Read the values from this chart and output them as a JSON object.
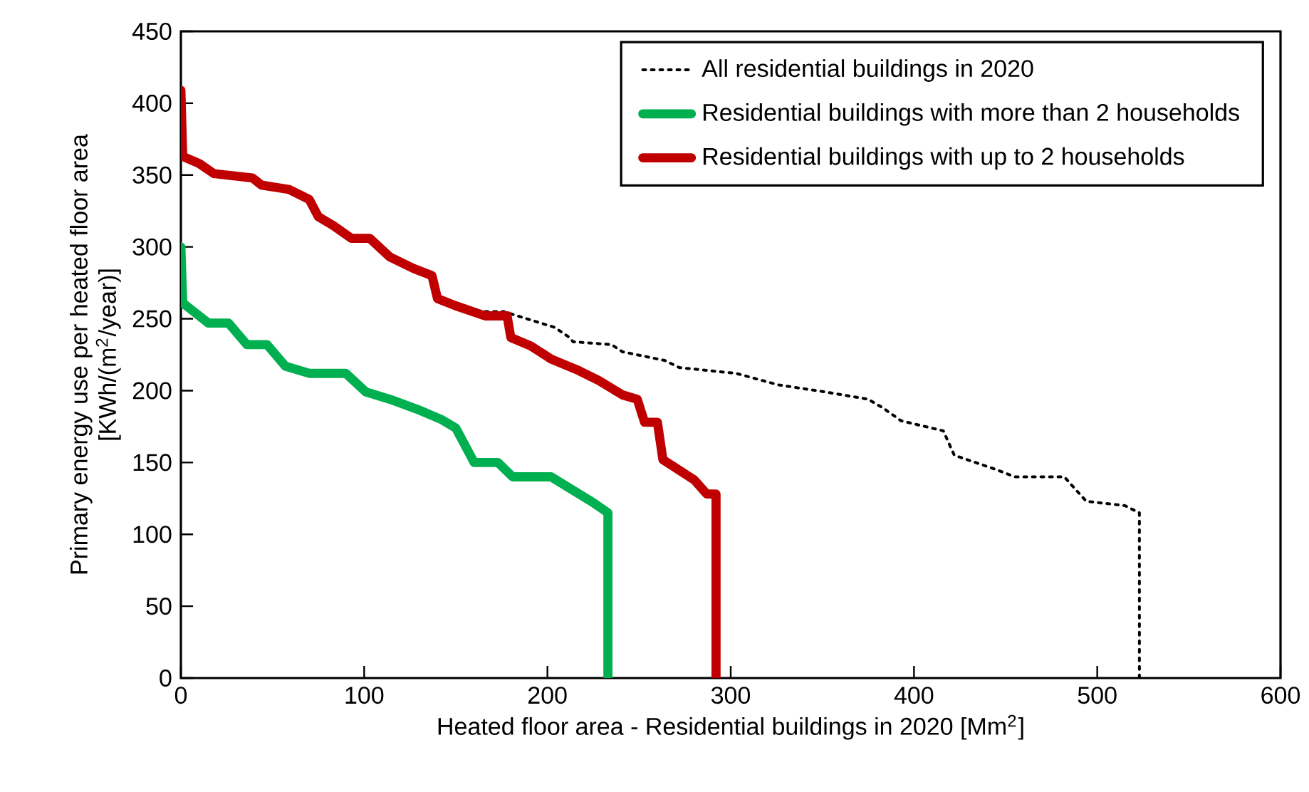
{
  "chart_data": {
    "type": "line",
    "xlabel": "Heated floor area - Residential buildings in 2020 [Mm$^{2}$]",
    "ylabel": "Primary energy use per heated floor area\n[KWh/(m$^{2}$/year)]",
    "xlim": [
      0,
      600
    ],
    "ylim": [
      0,
      450
    ],
    "xticks": [
      0,
      100,
      200,
      300,
      400,
      500,
      600
    ],
    "yticks": [
      0,
      50,
      100,
      150,
      200,
      250,
      300,
      350,
      400,
      450
    ],
    "grid": false,
    "legend": "top right",
    "marker": "none",
    "series": [
      {
        "name": "All residential buildings in 2020",
        "color": "#000000",
        "line_style": "dotted",
        "x": [
          166,
          176,
          204,
          212,
          214,
          235,
          241,
          264,
          272,
          303,
          326,
          352,
          375,
          383,
          393,
          416,
          422,
          445,
          455,
          482,
          494,
          515,
          523,
          523
        ],
        "values": [
          255,
          255,
          244,
          237,
          234,
          232,
          227,
          221,
          216,
          212,
          204,
          199,
          194,
          188,
          179,
          172,
          155,
          145,
          140,
          140,
          123,
          120,
          115,
          0
        ]
      },
      {
        "name": "Residential buildings with more than 2 households",
        "color": "#00b050",
        "line_style": "solid",
        "x": [
          0,
          1,
          8,
          15,
          26,
          36,
          47,
          57,
          70,
          90,
          101,
          114,
          129,
          142,
          150,
          160,
          173,
          181,
          202,
          225,
          233,
          233
        ],
        "values": [
          300,
          261,
          254,
          247,
          247,
          232,
          232,
          217,
          212,
          212,
          199,
          194,
          187,
          180,
          174,
          150,
          150,
          140,
          140,
          122,
          115,
          0
        ]
      },
      {
        "name": "Residential buildings with up to 2 households",
        "color": "#c00000",
        "line_style": "solid",
        "x": [
          0,
          1,
          10,
          18,
          39,
          44,
          59,
          70,
          75,
          83,
          93,
          103,
          114,
          127,
          137,
          140,
          150,
          166,
          178,
          180,
          191,
          202,
          217,
          228,
          241,
          249,
          253,
          260,
          263,
          280,
          287,
          292,
          292
        ],
        "values": [
          409,
          363,
          358,
          351,
          348,
          343,
          340,
          333,
          321,
          315,
          306,
          306,
          293,
          285,
          280,
          264,
          259,
          252,
          252,
          237,
          231,
          222,
          214,
          207,
          197,
          194,
          178,
          178,
          152,
          138,
          128,
          128,
          0
        ]
      }
    ]
  }
}
